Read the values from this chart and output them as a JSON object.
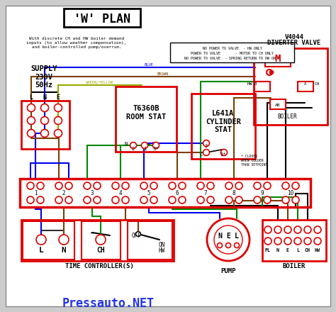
{
  "bg_color": "#cccccc",
  "RED": "#dd0000",
  "BLUE": "#0000ee",
  "BROWN": "#7B3F00",
  "GREEN": "#008800",
  "GY": "#99aa00",
  "BLACK": "#000000",
  "title": "'W' PLAN",
  "subtitle": "With discrete CH and HW boiler demand\ninputs (to allow weather compensation),\nand boiler-controlled pump/overrun.",
  "watermark": "Pressauto.NET",
  "room_stat": "T6360B\nROOM STAT",
  "cyl_stat": "L641A\nCYLINDER\nSTAT",
  "supply": "SUPPLY\n230V\n50Hz",
  "tc_label": "TIME CONTROLLER(S)",
  "pump_label": "PUMP",
  "boiler_label2": "BOILER",
  "diverter_title1": "V4044",
  "diverter_title2": "DIVERTER VALVE"
}
